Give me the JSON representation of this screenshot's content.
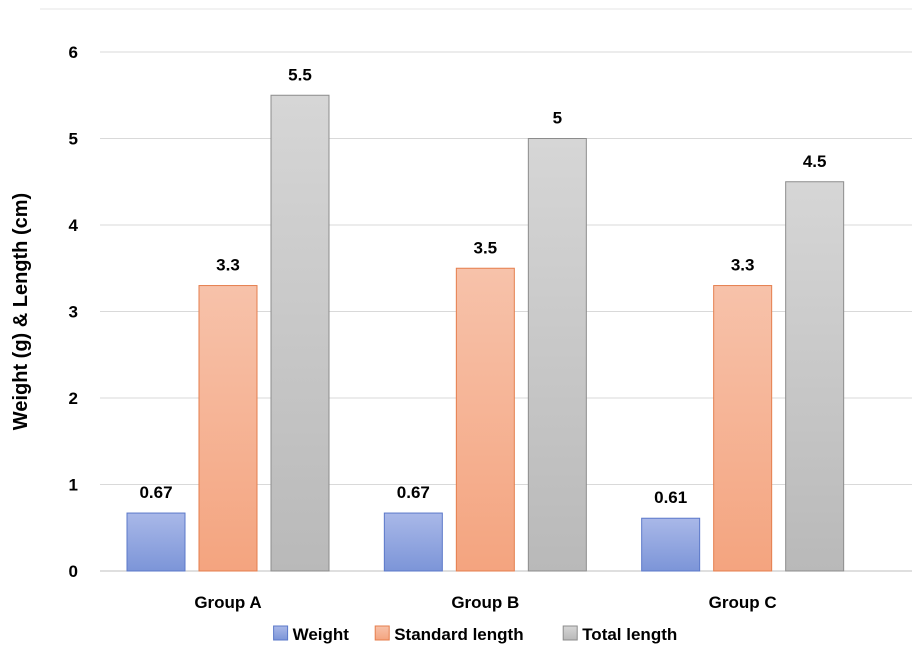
{
  "chart_data": {
    "type": "bar",
    "title": "",
    "xlabel": "",
    "ylabel": "Weight (g) & Length (cm)",
    "ylim": [
      0,
      6
    ],
    "yticks": [
      0,
      1,
      2,
      3,
      4,
      5,
      6
    ],
    "grid": true,
    "legend_position": "bottom",
    "categories": [
      "Group A",
      "Group B",
      "Group C"
    ],
    "series": [
      {
        "name": "Weight",
        "values": [
          0.67,
          0.67,
          0.61
        ],
        "labels": [
          "0.67",
          "0.67",
          "0.61"
        ],
        "color_top": "#a9b8e8",
        "color_bottom": "#7c95d8",
        "stroke": "#5b78c9"
      },
      {
        "name": "Standard length",
        "values": [
          3.3,
          3.5,
          3.3
        ],
        "labels": [
          "3.3",
          "3.5",
          "3.3"
        ],
        "color_top": "#f7c2aa",
        "color_bottom": "#f4a47f",
        "stroke": "#e57e4d"
      },
      {
        "name": "Total length",
        "values": [
          5.5,
          5,
          4.5
        ],
        "labels": [
          "5.5",
          "5",
          "4.5"
        ],
        "color_top": "#d6d6d6",
        "color_bottom": "#b9b9b9",
        "stroke": "#8c8c8c"
      }
    ]
  }
}
